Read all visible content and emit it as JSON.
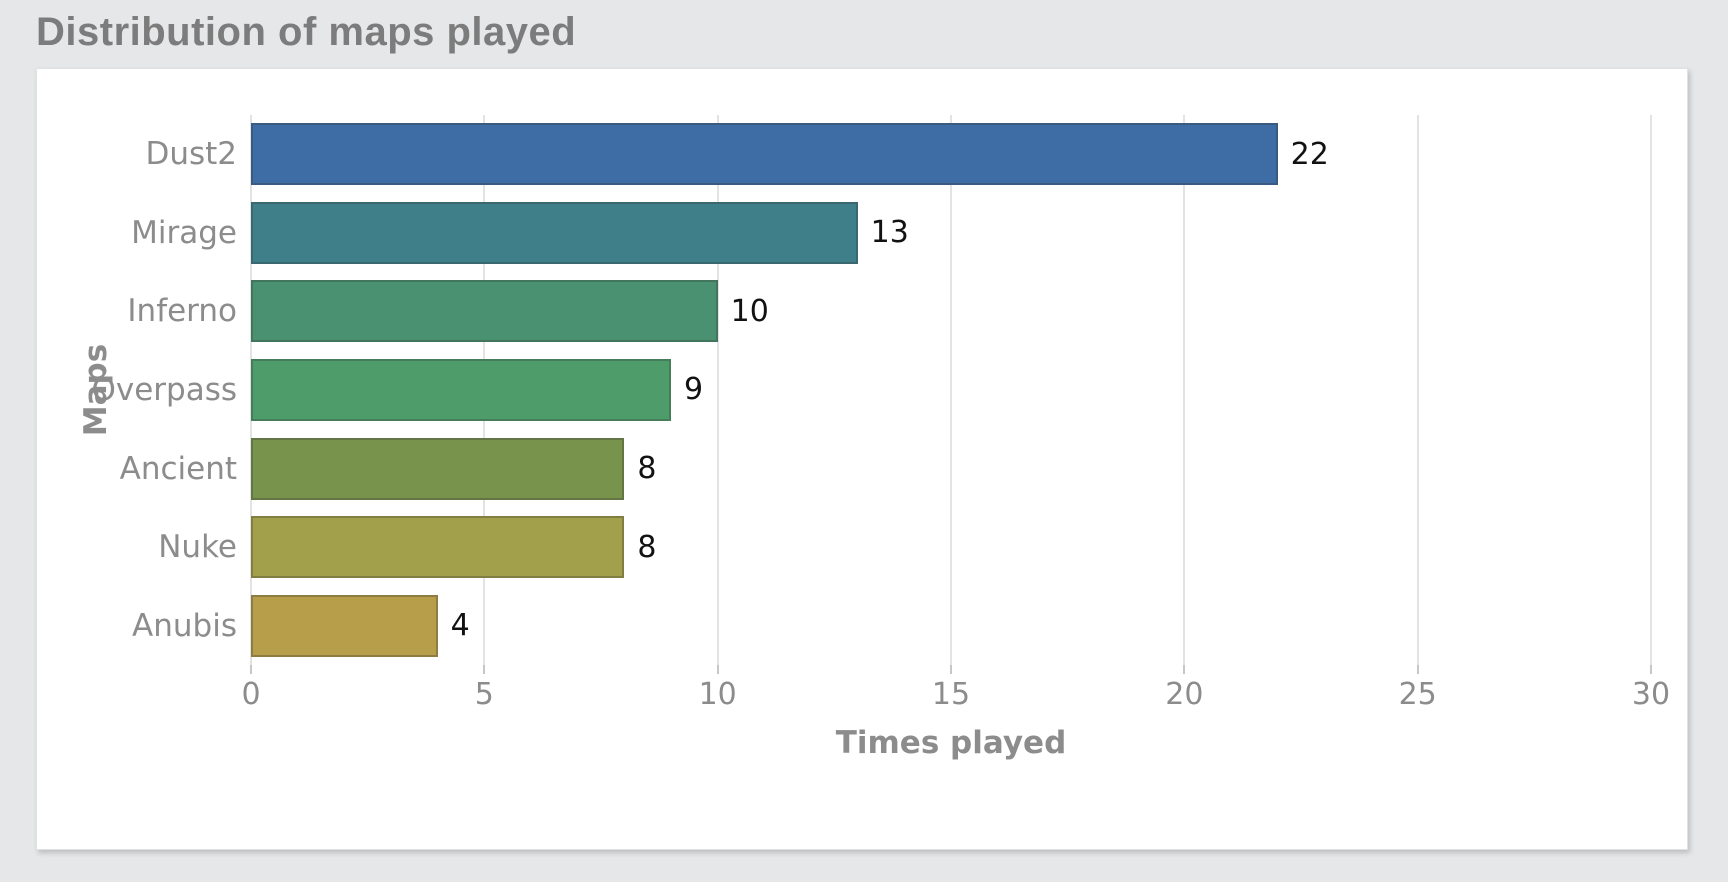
{
  "header": {
    "title": "Distribution of maps played"
  },
  "chart_data": {
    "type": "bar",
    "orientation": "horizontal",
    "title": "Distribution of maps played",
    "categories": [
      "Dust2",
      "Mirage",
      "Inferno",
      "Overpass",
      "Ancient",
      "Nuke",
      "Anubis"
    ],
    "values": [
      22,
      13,
      10,
      9,
      8,
      8,
      4
    ],
    "bar_colors": [
      "#3e6ca4",
      "#3f7f8a",
      "#4a9171",
      "#4e9c6a",
      "#78934b",
      "#a2a04a",
      "#b69e4a"
    ],
    "value_labels": [
      "22",
      "13",
      "10",
      "9",
      "8",
      "8",
      "4"
    ],
    "xlabel": "Times played",
    "ylabel": "Maps",
    "xlim": [
      0,
      30
    ],
    "xticks": [
      "0",
      "5",
      "10",
      "15",
      "20",
      "25",
      "30"
    ],
    "grid": true,
    "legend": false
  },
  "theme": {
    "page_background": "#e6e7e9",
    "card_background": "#ffffff",
    "title_color": "#7c7c7c",
    "axis_text_color": "#8c8c8c",
    "value_text_color": "#121212",
    "grid_color": "#e2e3e5",
    "bar_edge_color": "rgba(50,50,50,0.30)"
  }
}
